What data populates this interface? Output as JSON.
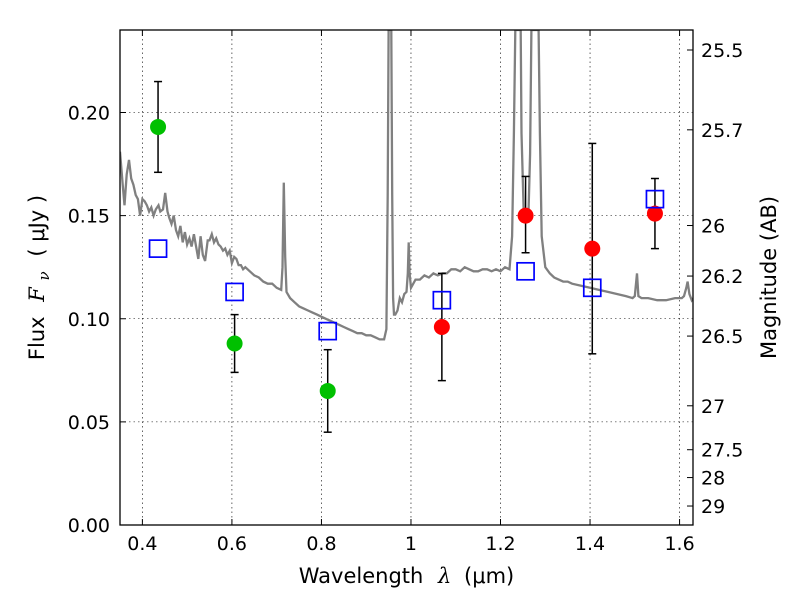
{
  "chart_data": {
    "type": "scatter",
    "xlabel_prefix": "Wavelength",
    "xlabel_symbol": "λ",
    "xlabel_unit": "(μm)",
    "ylabel_prefix": "Flux",
    "ylabel_symbol": "F",
    "ylabel_subscript": "ν",
    "ylabel_unit": "( μJy )",
    "y2label": "Magnitude (AB)",
    "xlim": [
      0.35,
      1.63
    ],
    "ylim": [
      0.0,
      0.24
    ],
    "grid": true,
    "x_ticks": [
      0.4,
      0.6,
      0.8,
      1.0,
      1.2,
      1.4,
      1.6
    ],
    "x_tick_labels": [
      "0.4",
      "0.6",
      "0.8",
      "1",
      "1.2",
      "1.4",
      "1.6"
    ],
    "y_ticks": [
      0.0,
      0.05,
      0.1,
      0.15,
      0.2
    ],
    "y_tick_labels": [
      "0.00",
      "0.05",
      "0.10",
      "0.15",
      "0.20"
    ],
    "y2_ticks": [
      {
        "flux": 0.2303,
        "label": "25.5"
      },
      {
        "flux": 0.1916,
        "label": "25.7"
      },
      {
        "flux": 0.1452,
        "label": "26"
      },
      {
        "flux": 0.1207,
        "label": "26.2"
      },
      {
        "flux": 0.0916,
        "label": "26.5"
      },
      {
        "flux": 0.0578,
        "label": "27"
      },
      {
        "flux": 0.0365,
        "label": "27.5"
      },
      {
        "flux": 0.023,
        "label": "28"
      },
      {
        "flux": 0.0092,
        "label": "29"
      }
    ],
    "colors": {
      "green": "#00c000",
      "red": "#ff0000",
      "blue": "#0000ff",
      "model": "#808080"
    },
    "series": [
      {
        "marker": "circle",
        "color": "green",
        "points": [
          {
            "x": 0.435,
            "y": 0.193,
            "lo": 0.171,
            "hi": 0.215
          },
          {
            "x": 0.606,
            "y": 0.088,
            "lo": 0.074,
            "hi": 0.102
          },
          {
            "x": 0.814,
            "y": 0.065,
            "lo": 0.045,
            "hi": 0.085
          }
        ]
      },
      {
        "marker": "circle",
        "color": "red",
        "points": [
          {
            "x": 1.069,
            "y": 0.096,
            "lo": 0.07,
            "hi": 0.122
          },
          {
            "x": 1.256,
            "y": 0.15,
            "lo": 0.132,
            "hi": 0.169
          },
          {
            "x": 1.405,
            "y": 0.134,
            "lo": 0.083,
            "hi": 0.185
          },
          {
            "x": 1.545,
            "y": 0.151,
            "lo": 0.134,
            "hi": 0.168
          }
        ]
      },
      {
        "marker": "square",
        "color": "blue",
        "points": [
          {
            "x": 0.435,
            "y": 0.134
          },
          {
            "x": 0.606,
            "y": 0.113
          },
          {
            "x": 0.814,
            "y": 0.094
          },
          {
            "x": 1.069,
            "y": 0.109
          },
          {
            "x": 1.256,
            "y": 0.123
          },
          {
            "x": 1.405,
            "y": 0.115
          },
          {
            "x": 1.545,
            "y": 0.158
          }
        ]
      }
    ],
    "model_curve": [
      [
        0.35,
        0.181
      ],
      [
        0.356,
        0.165
      ],
      [
        0.36,
        0.155
      ],
      [
        0.365,
        0.17
      ],
      [
        0.37,
        0.177
      ],
      [
        0.375,
        0.168
      ],
      [
        0.38,
        0.165
      ],
      [
        0.385,
        0.16
      ],
      [
        0.39,
        0.158
      ],
      [
        0.395,
        0.15
      ],
      [
        0.4,
        0.158
      ],
      [
        0.405,
        0.157
      ],
      [
        0.41,
        0.155
      ],
      [
        0.415,
        0.152
      ],
      [
        0.42,
        0.154
      ],
      [
        0.425,
        0.15
      ],
      [
        0.43,
        0.153
      ],
      [
        0.436,
        0.155
      ],
      [
        0.44,
        0.152
      ],
      [
        0.446,
        0.153
      ],
      [
        0.451,
        0.161
      ],
      [
        0.456,
        0.152
      ],
      [
        0.46,
        0.149
      ],
      [
        0.465,
        0.146
      ],
      [
        0.47,
        0.15
      ],
      [
        0.475,
        0.143
      ],
      [
        0.48,
        0.14
      ],
      [
        0.485,
        0.145
      ],
      [
        0.49,
        0.137
      ],
      [
        0.495,
        0.142
      ],
      [
        0.5,
        0.136
      ],
      [
        0.505,
        0.139
      ],
      [
        0.51,
        0.135
      ],
      [
        0.515,
        0.141
      ],
      [
        0.52,
        0.135
      ],
      [
        0.525,
        0.129
      ],
      [
        0.53,
        0.14
      ],
      [
        0.535,
        0.131
      ],
      [
        0.54,
        0.128
      ],
      [
        0.546,
        0.138
      ],
      [
        0.55,
        0.138
      ],
      [
        0.555,
        0.141
      ],
      [
        0.56,
        0.137
      ],
      [
        0.565,
        0.139
      ],
      [
        0.57,
        0.136
      ],
      [
        0.575,
        0.135
      ],
      [
        0.58,
        0.133
      ],
      [
        0.585,
        0.134
      ],
      [
        0.59,
        0.131
      ],
      [
        0.595,
        0.133
      ],
      [
        0.6,
        0.127
      ],
      [
        0.605,
        0.13
      ],
      [
        0.61,
        0.129
      ],
      [
        0.615,
        0.126
      ],
      [
        0.62,
        0.126
      ],
      [
        0.625,
        0.124
      ],
      [
        0.63,
        0.125
      ],
      [
        0.64,
        0.123
      ],
      [
        0.65,
        0.121
      ],
      [
        0.66,
        0.12
      ],
      [
        0.67,
        0.118
      ],
      [
        0.68,
        0.117
      ],
      [
        0.69,
        0.117
      ],
      [
        0.7,
        0.115
      ],
      [
        0.71,
        0.114
      ],
      [
        0.713,
        0.125
      ],
      [
        0.716,
        0.166
      ],
      [
        0.719,
        0.13
      ],
      [
        0.722,
        0.113
      ],
      [
        0.73,
        0.11
      ],
      [
        0.74,
        0.108
      ],
      [
        0.75,
        0.106
      ],
      [
        0.76,
        0.105
      ],
      [
        0.77,
        0.104
      ],
      [
        0.78,
        0.103
      ],
      [
        0.79,
        0.102
      ],
      [
        0.8,
        0.101
      ],
      [
        0.81,
        0.1
      ],
      [
        0.82,
        0.099
      ],
      [
        0.83,
        0.098
      ],
      [
        0.84,
        0.097
      ],
      [
        0.85,
        0.096
      ],
      [
        0.86,
        0.095
      ],
      [
        0.87,
        0.094
      ],
      [
        0.88,
        0.093
      ],
      [
        0.89,
        0.093
      ],
      [
        0.9,
        0.092
      ],
      [
        0.91,
        0.092
      ],
      [
        0.92,
        0.091
      ],
      [
        0.93,
        0.09
      ],
      [
        0.94,
        0.09
      ],
      [
        0.945,
        0.095
      ],
      [
        0.948,
        0.16
      ],
      [
        0.95,
        0.24
      ],
      [
        0.956,
        0.24
      ],
      [
        0.958,
        0.16
      ],
      [
        0.96,
        0.11
      ],
      [
        0.962,
        0.102
      ],
      [
        0.965,
        0.102
      ],
      [
        0.97,
        0.104
      ],
      [
        0.975,
        0.11
      ],
      [
        0.98,
        0.108
      ],
      [
        0.985,
        0.112
      ],
      [
        0.99,
        0.113
      ],
      [
        0.993,
        0.122
      ],
      [
        0.995,
        0.137
      ],
      [
        0.997,
        0.122
      ],
      [
        1.0,
        0.115
      ],
      [
        1.01,
        0.119
      ],
      [
        1.02,
        0.119
      ],
      [
        1.03,
        0.121
      ],
      [
        1.04,
        0.12
      ],
      [
        1.05,
        0.122
      ],
      [
        1.06,
        0.121
      ],
      [
        1.07,
        0.122
      ],
      [
        1.08,
        0.122
      ],
      [
        1.09,
        0.124
      ],
      [
        1.1,
        0.124
      ],
      [
        1.11,
        0.123
      ],
      [
        1.12,
        0.125
      ],
      [
        1.13,
        0.124
      ],
      [
        1.14,
        0.123
      ],
      [
        1.15,
        0.123
      ],
      [
        1.16,
        0.124
      ],
      [
        1.17,
        0.124
      ],
      [
        1.18,
        0.123
      ],
      [
        1.19,
        0.124
      ],
      [
        1.2,
        0.123
      ],
      [
        1.21,
        0.125
      ],
      [
        1.22,
        0.124
      ],
      [
        1.226,
        0.14
      ],
      [
        1.23,
        0.19
      ],
      [
        1.233,
        0.24
      ],
      [
        1.245,
        0.24
      ],
      [
        1.247,
        0.19
      ],
      [
        1.252,
        0.15
      ],
      [
        1.262,
        0.148
      ],
      [
        1.266,
        0.18
      ],
      [
        1.269,
        0.24
      ],
      [
        1.285,
        0.24
      ],
      [
        1.288,
        0.19
      ],
      [
        1.292,
        0.14
      ],
      [
        1.3,
        0.125
      ],
      [
        1.31,
        0.122
      ],
      [
        1.32,
        0.12
      ],
      [
        1.33,
        0.119
      ],
      [
        1.34,
        0.118
      ],
      [
        1.35,
        0.118
      ],
      [
        1.36,
        0.117
      ],
      [
        1.38,
        0.116
      ],
      [
        1.4,
        0.115
      ],
      [
        1.42,
        0.114
      ],
      [
        1.44,
        0.113
      ],
      [
        1.46,
        0.112
      ],
      [
        1.48,
        0.111
      ],
      [
        1.495,
        0.11
      ],
      [
        1.5,
        0.111
      ],
      [
        1.505,
        0.122
      ],
      [
        1.508,
        0.111
      ],
      [
        1.515,
        0.11
      ],
      [
        1.53,
        0.11
      ],
      [
        1.55,
        0.109
      ],
      [
        1.57,
        0.109
      ],
      [
        1.59,
        0.11
      ],
      [
        1.605,
        0.11
      ],
      [
        1.61,
        0.111
      ],
      [
        1.615,
        0.115
      ],
      [
        1.618,
        0.118
      ],
      [
        1.622,
        0.112
      ],
      [
        1.627,
        0.109
      ],
      [
        1.63,
        0.11
      ]
    ]
  }
}
